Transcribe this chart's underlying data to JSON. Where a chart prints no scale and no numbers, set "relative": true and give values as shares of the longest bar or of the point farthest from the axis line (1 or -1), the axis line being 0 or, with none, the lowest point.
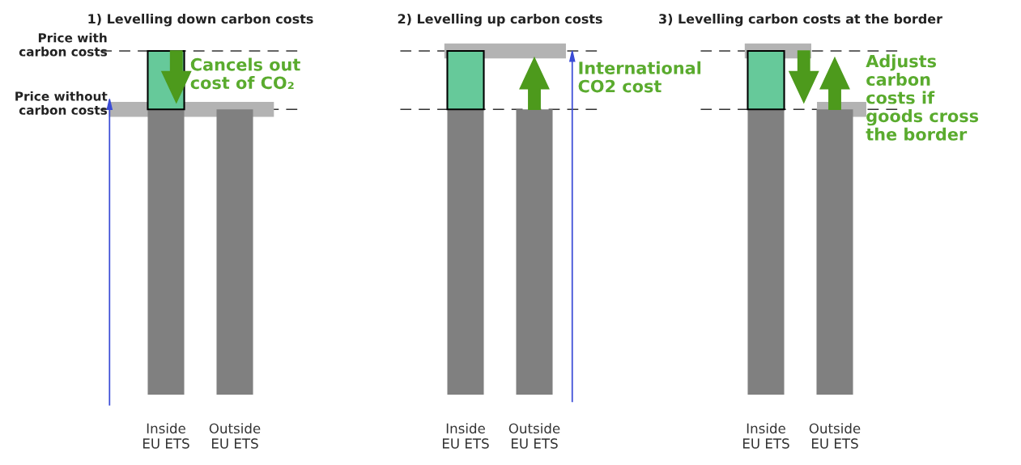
{
  "chart_data": [
    {
      "type": "bar",
      "title": "1) Levelling down carbon costs",
      "relative": true,
      "stacked": true,
      "categories": [
        "Inside\nEU ETS",
        "Outside\nEU ETS"
      ],
      "series": [
        {
          "color": "#808080",
          "values": [
            0.83,
            0.83
          ]
        },
        {
          "color": "#66c99a",
          "values": [
            0.17,
            null
          ]
        }
      ],
      "ref_lines": [
        {
          "axis": "y",
          "value": 1,
          "label": "Price with\ncarbon costs",
          "line_style": "dashed"
        },
        {
          "axis": "y",
          "value": 0.83,
          "label": "Price without\ncarbon costs",
          "line_style": "dashed"
        }
      ],
      "annotations": [
        "Cancels out\ncost of CO₂"
      ]
    },
    {
      "type": "bar",
      "title": "2) Levelling up carbon costs",
      "relative": true,
      "stacked": true,
      "categories": [
        "Inside\nEU ETS",
        "Outside\nEU ETS"
      ],
      "series": [
        {
          "color": "#808080",
          "values": [
            0.83,
            0.83
          ]
        },
        {
          "color": "#66c99a",
          "values": [
            0.17,
            null
          ]
        }
      ],
      "ref_lines": [
        {
          "axis": "y",
          "value": 1,
          "line_style": "dashed"
        },
        {
          "axis": "y",
          "value": 0.83,
          "line_style": "dashed"
        }
      ],
      "annotations": [
        "International\nCO2 cost"
      ]
    },
    {
      "type": "bar",
      "title": "3) Levelling carbon costs at the border",
      "relative": true,
      "stacked": true,
      "categories": [
        "Inside\nEU ETS",
        "Outside\nEU ETS"
      ],
      "series": [
        {
          "color": "#808080",
          "values": [
            0.83,
            0.83
          ]
        },
        {
          "color": "#66c99a",
          "values": [
            0.17,
            null
          ]
        }
      ],
      "ref_lines": [
        {
          "axis": "y",
          "value": 1,
          "line_style": "dashed"
        },
        {
          "axis": "y",
          "value": 0.83,
          "line_style": "dashed"
        }
      ],
      "annotations": [
        "Adjusts\ncarbon\ncosts if\ngoods cross\nthe border"
      ]
    }
  ]
}
